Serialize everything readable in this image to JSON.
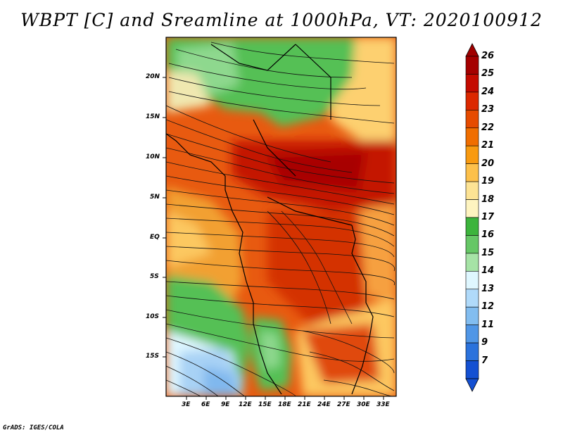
{
  "title": "WBPT [C] and Sreamline at 1000hPa, VT: 2020100912",
  "footer": "GrADS: IGES/COLA",
  "map": {
    "variable": "WBPT [C]",
    "overlay": "Streamline",
    "level": "1000hPa",
    "valid_time": "2020100912",
    "lat_ticks": [
      "20N",
      "15N",
      "10N",
      "5N",
      "EQ",
      "5S",
      "10S",
      "15S"
    ],
    "lon_ticks": [
      "3E",
      "6E",
      "9E",
      "12E",
      "15E",
      "18E",
      "21E",
      "24E",
      "27E",
      "30E",
      "33E"
    ]
  },
  "colorbar": {
    "labels": [
      "26",
      "25",
      "24",
      "23",
      "22",
      "21",
      "20",
      "19",
      "18",
      "17",
      "16",
      "15",
      "14",
      "13",
      "12",
      "11",
      "9",
      "7"
    ],
    "colors": [
      "#a50000",
      "#c40a00",
      "#dc2800",
      "#e64b00",
      "#f06e00",
      "#f89a10",
      "#fdc04a",
      "#fde394",
      "#fef4c0",
      "#3cb43c",
      "#66c766",
      "#a6e3a6",
      "#dff7ff",
      "#b0dafa",
      "#82bdf0",
      "#5096e6",
      "#2b72dc",
      "#1450d2"
    ],
    "top_arrow_color": "#a00000",
    "bottom_arrow_color": "#1450d2"
  }
}
